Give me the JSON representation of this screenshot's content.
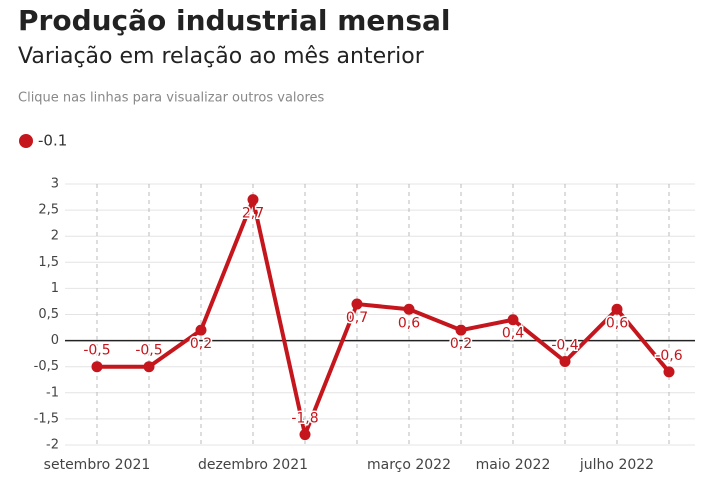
{
  "chart_data": {
    "type": "line",
    "title": "Produção industrial mensal",
    "subtitle": "Variação em relação ao mês anterior",
    "note": "Clique nas linhas para visualizar outros valores",
    "categories": [
      "setembro 2021",
      null,
      null,
      "dezembro 2021",
      null,
      null,
      "março 2022",
      null,
      "maio 2022",
      null,
      "julho 2022",
      null
    ],
    "series": [
      {
        "name": "-0.1",
        "color": "#c4161c",
        "values": [
          -0.5,
          -0.5,
          0.2,
          2.7,
          -1.8,
          0.7,
          0.6,
          0.2,
          0.4,
          -0.4,
          0.6,
          -0.6
        ],
        "value_labels": [
          "-0,5",
          "-0,5",
          "0,2",
          "2,7",
          "-1,8",
          "0,7",
          "0,6",
          "0,2",
          "0,4",
          "-0,4",
          "0,6",
          "-0,6"
        ]
      }
    ],
    "ylim": [
      -2,
      3
    ],
    "yticks": [
      {
        "value": -2,
        "label": "-2"
      },
      {
        "value": -1.5,
        "label": "-1,5"
      },
      {
        "value": -1,
        "label": "-1"
      },
      {
        "value": -0.5,
        "label": "-0,5"
      },
      0,
      {
        "value": 0.5,
        "label": "0,5"
      },
      1,
      {
        "value": 1.5,
        "label": "1,5"
      },
      2,
      {
        "value": 2.5,
        "label": "2,5"
      },
      3
    ],
    "grid": true,
    "legend": "top-left"
  }
}
